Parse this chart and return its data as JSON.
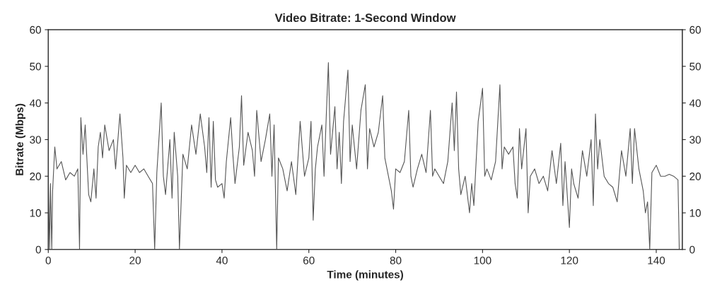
{
  "chart_data": {
    "type": "line",
    "title": "Video Bitrate: 1-Second Window",
    "xlabel": "Time (minutes)",
    "ylabel": "Bitrate (Mbps)",
    "series": [
      {
        "color": "#555555",
        "x": [
          0,
          0.3,
          0.5,
          0.8,
          1.0,
          1.5,
          2,
          3,
          4,
          5,
          6,
          6.8,
          7.2,
          7.5,
          8,
          8.5,
          9.3,
          9.8,
          10.5,
          11,
          11.5,
          12,
          12.5,
          13,
          14,
          15,
          15.5,
          16.5,
          17.2,
          17.5,
          18,
          19,
          20,
          21,
          22,
          23,
          24,
          24.5,
          25,
          26,
          26.5,
          27,
          28,
          28.5,
          29,
          29.8,
          30.2,
          31,
          32,
          33,
          34,
          35,
          36,
          36.5,
          37,
          37.5,
          38,
          38.5,
          39,
          40,
          40.5,
          41,
          42,
          42.5,
          43,
          44,
          44.5,
          45,
          46,
          47,
          47.5,
          48,
          49,
          50,
          51,
          51.5,
          52,
          52.6,
          53,
          54,
          55,
          56,
          57,
          58,
          59,
          60,
          60.5,
          61,
          61.5,
          62,
          63,
          63.5,
          64,
          64.5,
          65,
          66,
          66.5,
          67,
          67.5,
          68,
          69,
          69.5,
          70,
          71,
          72,
          73,
          73.5,
          74,
          75,
          76,
          77,
          77.5,
          78,
          79,
          79.5,
          80,
          81,
          82,
          83,
          83.5,
          84,
          85,
          86,
          87,
          88,
          88.5,
          89,
          90,
          91,
          92,
          93,
          93.5,
          94,
          94.5,
          95,
          96,
          97,
          97.5,
          98,
          99,
          100,
          100.5,
          101,
          102,
          103,
          104,
          104.5,
          105,
          106,
          107,
          107.5,
          108,
          108.5,
          109,
          110,
          110.5,
          111,
          112,
          113,
          114,
          115,
          116,
          117,
          118,
          118.5,
          119,
          120,
          120.5,
          121,
          122,
          123,
          124,
          125,
          125.5,
          126,
          126.5,
          127,
          128,
          129,
          130,
          131,
          132,
          133,
          134,
          134.5,
          135,
          136,
          137,
          137.5,
          138,
          138.5,
          139,
          140,
          141,
          142,
          143,
          144,
          145,
          145.3
        ],
        "values": [
          20,
          0,
          18,
          0,
          16,
          28,
          22,
          24,
          19,
          21,
          20,
          22,
          0,
          36,
          26,
          34,
          15,
          13,
          22,
          14,
          28,
          32,
          25,
          34,
          27,
          30,
          22,
          37,
          25,
          14,
          23,
          21,
          23,
          21,
          22,
          20,
          18,
          0,
          21,
          40,
          20,
          15,
          30,
          14,
          32,
          20,
          0,
          26,
          22,
          34,
          26,
          37,
          28,
          21,
          36,
          17,
          35,
          19,
          17,
          18,
          14,
          24,
          36,
          26,
          18,
          28,
          42,
          23,
          32,
          27,
          20,
          38,
          24,
          30,
          37,
          20,
          34,
          0,
          25,
          22,
          16,
          24,
          15,
          35,
          20,
          25,
          35,
          8,
          22,
          28,
          34,
          20,
          36,
          51,
          26,
          39,
          22,
          32,
          18,
          35,
          49,
          24,
          34,
          22,
          38,
          45,
          22,
          33,
          28,
          32,
          42,
          25,
          22,
          16,
          11,
          22,
          21,
          24,
          38,
          20,
          17,
          22,
          26,
          21,
          38,
          20,
          22,
          20,
          18,
          24,
          40,
          27,
          43,
          22,
          15,
          20,
          10,
          18,
          12,
          35,
          44,
          20,
          22,
          19,
          24,
          45,
          22,
          28,
          26,
          28,
          18,
          14,
          33,
          22,
          33,
          10,
          20,
          22,
          18,
          20,
          16,
          27,
          18,
          29,
          12,
          24,
          6,
          22,
          18,
          14,
          27,
          20,
          30,
          12,
          37,
          22,
          30,
          20,
          18,
          17,
          13,
          27,
          20,
          33,
          18,
          33,
          22,
          16,
          10,
          13,
          0,
          21,
          23,
          20,
          20,
          20.5,
          20,
          19,
          0
        ]
      }
    ],
    "xlim": [
      0,
      146
    ],
    "xticks": [
      0,
      20,
      40,
      60,
      80,
      100,
      120,
      140
    ],
    "ylim": [
      0,
      60
    ],
    "yticks": [
      0,
      10,
      20,
      30,
      40,
      50,
      60
    ],
    "y2lim": [
      0,
      60
    ],
    "y2ticks": [
      0,
      10,
      20,
      30,
      40,
      50,
      60
    ],
    "grid": false,
    "legend": false
  }
}
